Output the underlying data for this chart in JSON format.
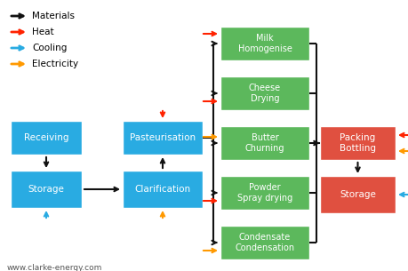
{
  "blue": "#29ABE2",
  "green": "#5CB85C",
  "red": "#E05040",
  "arrow_black": "#111111",
  "arrow_red": "#FF2200",
  "arrow_blue": "#29ABE2",
  "arrow_orange": "#FF9900",
  "legend": [
    {
      "color": "#111111",
      "label": "Materials"
    },
    {
      "color": "#FF2200",
      "label": "Heat"
    },
    {
      "color": "#29ABE2",
      "label": "Cooling"
    },
    {
      "color": "#FF9900",
      "label": "Electricity"
    }
  ],
  "website": "www.clarke-energy.com",
  "figsize": [
    4.6,
    3.05
  ],
  "dpi": 100
}
